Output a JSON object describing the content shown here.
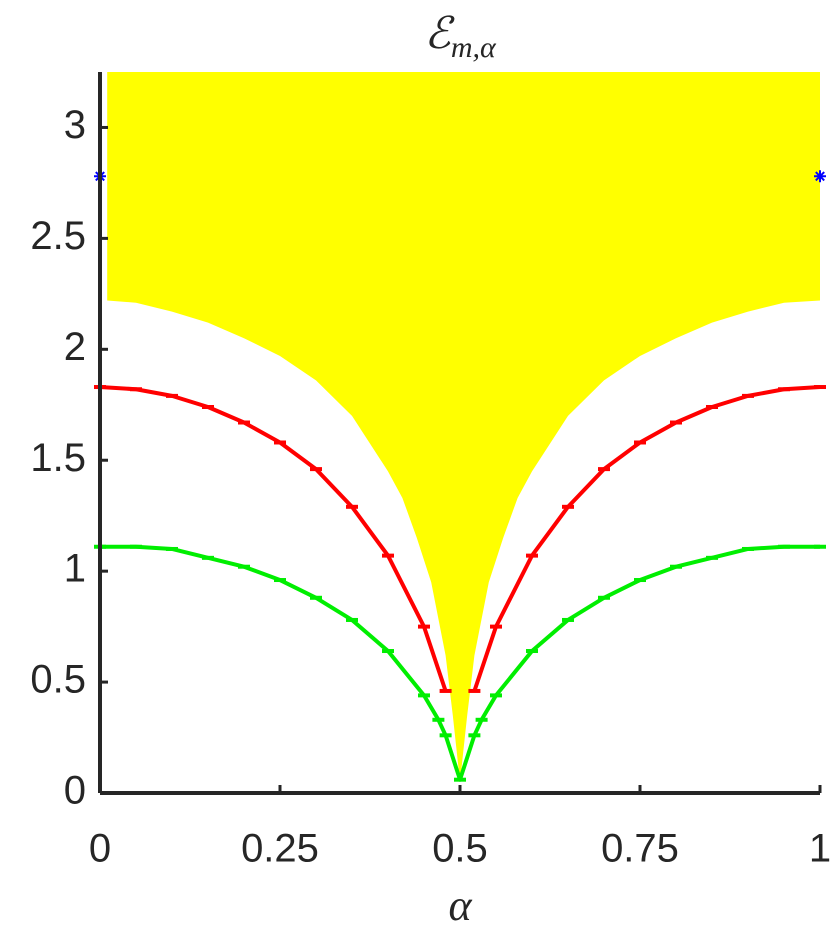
{
  "chart_data": {
    "type": "line",
    "title": "ℰ",
    "title_subscript": "m,α",
    "xlabel": "α",
    "xlim": [
      0,
      1
    ],
    "ylim": [
      0,
      3.25
    ],
    "xticks": [
      0,
      0.25,
      0.5,
      0.75,
      1
    ],
    "yticks": [
      0,
      0.5,
      1,
      1.5,
      2,
      2.5,
      3
    ],
    "grid": false,
    "area": {
      "color": "#ffff00",
      "x": [
        0.01,
        0.05,
        0.1,
        0.15,
        0.2,
        0.25,
        0.3,
        0.35,
        0.4,
        0.42,
        0.44,
        0.46,
        0.48,
        0.49,
        0.5,
        0.51,
        0.52,
        0.54,
        0.56,
        0.58,
        0.6,
        0.65,
        0.7,
        0.75,
        0.8,
        0.85,
        0.9,
        0.95,
        1
      ],
      "values": [
        2.22,
        2.21,
        2.17,
        2.12,
        2.05,
        1.97,
        1.86,
        1.7,
        1.45,
        1.33,
        1.15,
        0.95,
        0.62,
        0.35,
        0.05,
        0.35,
        0.62,
        0.95,
        1.15,
        1.33,
        1.45,
        1.7,
        1.86,
        1.97,
        2.05,
        2.12,
        2.17,
        2.21,
        2.22
      ]
    },
    "series": [
      {
        "color": "#ff0000",
        "x": [
          0,
          0.05,
          0.1,
          0.15,
          0.2,
          0.25,
          0.3,
          0.35,
          0.4,
          0.45,
          0.48,
          0.5,
          0.52,
          0.55,
          0.6,
          0.65,
          0.7,
          0.75,
          0.8,
          0.85,
          0.9,
          0.95,
          1
        ],
        "values": [
          1.83,
          1.82,
          1.79,
          1.74,
          1.67,
          1.58,
          1.46,
          1.29,
          1.07,
          0.75,
          0.46,
          null,
          0.46,
          0.75,
          1.07,
          1.29,
          1.46,
          1.58,
          1.67,
          1.74,
          1.79,
          1.82,
          1.83
        ]
      },
      {
        "color": "#00ee00",
        "x": [
          0,
          0.05,
          0.1,
          0.15,
          0.2,
          0.25,
          0.3,
          0.35,
          0.4,
          0.45,
          0.47,
          0.48,
          0.5,
          0.52,
          0.53,
          0.55,
          0.6,
          0.65,
          0.7,
          0.75,
          0.8,
          0.85,
          0.9,
          0.95,
          1
        ],
        "values": [
          1.11,
          1.11,
          1.1,
          1.06,
          1.02,
          0.96,
          0.88,
          0.78,
          0.64,
          0.44,
          0.33,
          0.26,
          0.06,
          0.26,
          0.33,
          0.44,
          0.64,
          0.78,
          0.88,
          0.96,
          1.02,
          1.06,
          1.1,
          1.11,
          1.11
        ]
      }
    ],
    "markers": {
      "color": "#0000ff",
      "x": [
        0,
        1
      ],
      "values": [
        2.78,
        2.78
      ]
    }
  }
}
